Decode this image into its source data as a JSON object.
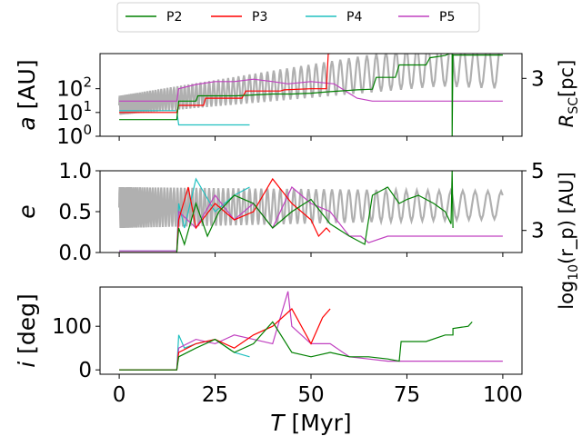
{
  "chart_data": {
    "type": "line",
    "xlabel_prefix": "T",
    "xlabel_unit": "[Myr]",
    "xlim": [
      -5,
      105
    ],
    "xticks": [
      0,
      25,
      50,
      75,
      100
    ],
    "legend": {
      "placement": "top-center",
      "entries": [
        {
          "name": "P2",
          "color": "#008000"
        },
        {
          "name": "P3",
          "color": "#ff0000"
        },
        {
          "name": "P4",
          "color": "#20c0c0"
        },
        {
          "name": "P5",
          "color": "#c040c0"
        }
      ]
    },
    "background_color": "#b0b0b0",
    "panels": [
      {
        "id": "a",
        "ylabel_var": "a",
        "ylabel_unit": "[AU]",
        "yscale": "log",
        "ylim": [
          1,
          3000
        ],
        "yticks": [
          {
            "value": 1,
            "base": "10",
            "exp": "0"
          },
          {
            "value": 10,
            "base": "10",
            "exp": "1"
          },
          {
            "value": 100,
            "base": "10",
            "exp": "2"
          }
        ],
        "right_label_main": "R",
        "right_label_sub": "SC",
        "right_label_unit": "[pc]",
        "right_ticks": [
          {
            "label": "3",
            "frac": 0.7
          }
        ],
        "series": {
          "P2": [
            [
              0,
              5
            ],
            [
              15,
              5
            ],
            [
              15.5,
              30
            ],
            [
              20,
              30
            ],
            [
              20.5,
              50
            ],
            [
              30,
              50
            ],
            [
              30.5,
              50
            ],
            [
              40,
              60
            ],
            [
              45,
              60
            ],
            [
              50,
              65
            ],
            [
              55,
              75
            ],
            [
              62,
              90
            ],
            [
              66,
              95
            ],
            [
              67,
              300
            ],
            [
              72,
              300
            ],
            [
              73,
              1000
            ],
            [
              80,
              1000
            ],
            [
              81,
              2000
            ],
            [
              85,
              2500
            ],
            [
              86,
              3000
            ],
            [
              86.8,
              3000
            ],
            [
              86.8,
              1
            ],
            [
              87,
              2600
            ],
            [
              100,
              2600
            ]
          ],
          "P3": [
            [
              0,
              10
            ],
            [
              15,
              10
            ],
            [
              15.5,
              20
            ],
            [
              22,
              20
            ],
            [
              22.5,
              40
            ],
            [
              32,
              40
            ],
            [
              33,
              80
            ],
            [
              42,
              80
            ],
            [
              43,
              90
            ],
            [
              50,
              100
            ],
            [
              54,
              100
            ],
            [
              54.5,
              3000
            ],
            [
              55,
              3000
            ]
          ],
          "P4": [
            [
              0,
              12
            ],
            [
              15,
              12
            ],
            [
              15.5,
              3
            ],
            [
              34,
              3
            ]
          ],
          "P5": [
            [
              0,
              30
            ],
            [
              15,
              30
            ],
            [
              15.5,
              100
            ],
            [
              20,
              150
            ],
            [
              25,
              200
            ],
            [
              30,
              200
            ],
            [
              35,
              250
            ],
            [
              40,
              200
            ],
            [
              44,
              160
            ],
            [
              50,
              200
            ],
            [
              56,
              160
            ],
            [
              62,
              40
            ],
            [
              66,
              30
            ],
            [
              70,
              30
            ],
            [
              80,
              30
            ],
            [
              100,
              30
            ]
          ],
          "background": {
            "t_start": 0,
            "t_end": 100,
            "center_start": 20,
            "center_end": 1000,
            "amp_start": 0.4,
            "amp_end": 1.0,
            "period_start": 0.45,
            "period_end": 3.5
          }
        }
      },
      {
        "id": "e",
        "ylabel_var": "e",
        "ylabel_unit": "",
        "yscale": "linear",
        "ylim": [
          0,
          1
        ],
        "yticks": [
          {
            "value": 0,
            "label": "0.0"
          },
          {
            "value": 0.5,
            "label": "0.5"
          },
          {
            "value": 1,
            "label": "1.0"
          }
        ],
        "right_label_main": "log",
        "right_label_sub": "10",
        "right_label_unit": "(r_p) [AU]",
        "right_ticks": [
          {
            "label": "5",
            "frac": 1.0
          },
          {
            "label": "3",
            "frac": 0.27
          }
        ],
        "series": {
          "P2": [
            [
              0,
              0
            ],
            [
              15,
              0
            ],
            [
              15.5,
              0.3
            ],
            [
              17,
              0.1
            ],
            [
              20,
              0.6
            ],
            [
              23,
              0.2
            ],
            [
              26,
              0.5
            ],
            [
              30,
              0.7
            ],
            [
              35,
              0.6
            ],
            [
              40,
              0.3
            ],
            [
              45,
              0.5
            ],
            [
              50,
              0.65
            ],
            [
              55,
              0.35
            ],
            [
              60,
              0.2
            ],
            [
              64,
              0.1
            ],
            [
              66,
              0.7
            ],
            [
              70,
              0.8
            ],
            [
              73,
              0.6
            ],
            [
              75,
              0.65
            ],
            [
              78,
              0.7
            ],
            [
              82,
              0.6
            ],
            [
              85,
              0.5
            ],
            [
              86.5,
              0.35
            ],
            [
              86.8,
              1
            ],
            [
              87,
              0.3
            ]
          ],
          "P3": [
            [
              0,
              0
            ],
            [
              15,
              0
            ],
            [
              15.5,
              0.4
            ],
            [
              18,
              0.8
            ],
            [
              20,
              0.3
            ],
            [
              25,
              0.6
            ],
            [
              30,
              0.4
            ],
            [
              35,
              0.5
            ],
            [
              40,
              0.9
            ],
            [
              45,
              0.6
            ],
            [
              50,
              0.4
            ],
            [
              52,
              0.2
            ],
            [
              54,
              0.3
            ],
            [
              55,
              0.25
            ]
          ],
          "P4": [
            [
              0,
              0.02
            ],
            [
              15,
              0.02
            ],
            [
              15.5,
              0.6
            ],
            [
              17,
              0.3
            ],
            [
              20,
              0.9
            ],
            [
              25,
              0.5
            ],
            [
              30,
              0.7
            ],
            [
              34,
              0.8
            ]
          ],
          "P5": [
            [
              0,
              0.02
            ],
            [
              15,
              0.02
            ],
            [
              15.5,
              0.5
            ],
            [
              20,
              0.3
            ],
            [
              25,
              0.7
            ],
            [
              30,
              0.4
            ],
            [
              35,
              0.6
            ],
            [
              40,
              0.3
            ],
            [
              45,
              0.8
            ],
            [
              50,
              0.6
            ],
            [
              55,
              0.5
            ],
            [
              60,
              0.2
            ],
            [
              63,
              0.2
            ],
            [
              65,
              0.12
            ],
            [
              70,
              0.2
            ],
            [
              80,
              0.2
            ],
            [
              100,
              0.2
            ]
          ],
          "background": {
            "t_start": 0,
            "t_end": 100,
            "center_start": 0.55,
            "center_end": 0.58,
            "amp_start": 0.25,
            "amp_end": 0.17,
            "period_start": 0.45,
            "period_end": 3.5
          }
        }
      },
      {
        "id": "i",
        "ylabel_var": "i",
        "ylabel_unit": "[deg]",
        "yscale": "linear",
        "ylim": [
          -10,
          190
        ],
        "yticks": [
          {
            "value": 0,
            "label": "0"
          },
          {
            "value": 100,
            "label": "100"
          }
        ],
        "series": {
          "P2": [
            [
              0,
              0
            ],
            [
              15,
              0
            ],
            [
              15.5,
              30
            ],
            [
              20,
              50
            ],
            [
              25,
              70
            ],
            [
              30,
              40
            ],
            [
              35,
              60
            ],
            [
              40,
              110
            ],
            [
              45,
              40
            ],
            [
              50,
              30
            ],
            [
              55,
              40
            ],
            [
              60,
              30
            ],
            [
              65,
              30
            ],
            [
              70,
              25
            ],
            [
              73,
              20
            ],
            [
              73.5,
              65
            ],
            [
              80,
              65
            ],
            [
              85,
              80
            ],
            [
              87,
              80
            ],
            [
              87,
              95
            ],
            [
              91,
              100
            ],
            [
              92,
              110
            ]
          ],
          "P3": [
            [
              0,
              0
            ],
            [
              15,
              0
            ],
            [
              15.5,
              40
            ],
            [
              20,
              60
            ],
            [
              25,
              70
            ],
            [
              30,
              50
            ],
            [
              35,
              80
            ],
            [
              40,
              100
            ],
            [
              45,
              140
            ],
            [
              50,
              60
            ],
            [
              53,
              120
            ],
            [
              55,
              140
            ]
          ],
          "P4": [
            [
              0,
              0
            ],
            [
              15,
              0
            ],
            [
              15.5,
              80
            ],
            [
              17,
              50
            ],
            [
              20,
              60
            ],
            [
              25,
              70
            ],
            [
              30,
              40
            ],
            [
              34,
              30
            ]
          ],
          "P5": [
            [
              0,
              0
            ],
            [
              15,
              0
            ],
            [
              15.5,
              50
            ],
            [
              20,
              70
            ],
            [
              25,
              60
            ],
            [
              30,
              80
            ],
            [
              35,
              70
            ],
            [
              40,
              60
            ],
            [
              44,
              180
            ],
            [
              45,
              100
            ],
            [
              50,
              60
            ],
            [
              55,
              60
            ],
            [
              60,
              30
            ],
            [
              65,
              25
            ],
            [
              70,
              20
            ],
            [
              80,
              20
            ],
            [
              100,
              20
            ]
          ]
        }
      }
    ]
  }
}
